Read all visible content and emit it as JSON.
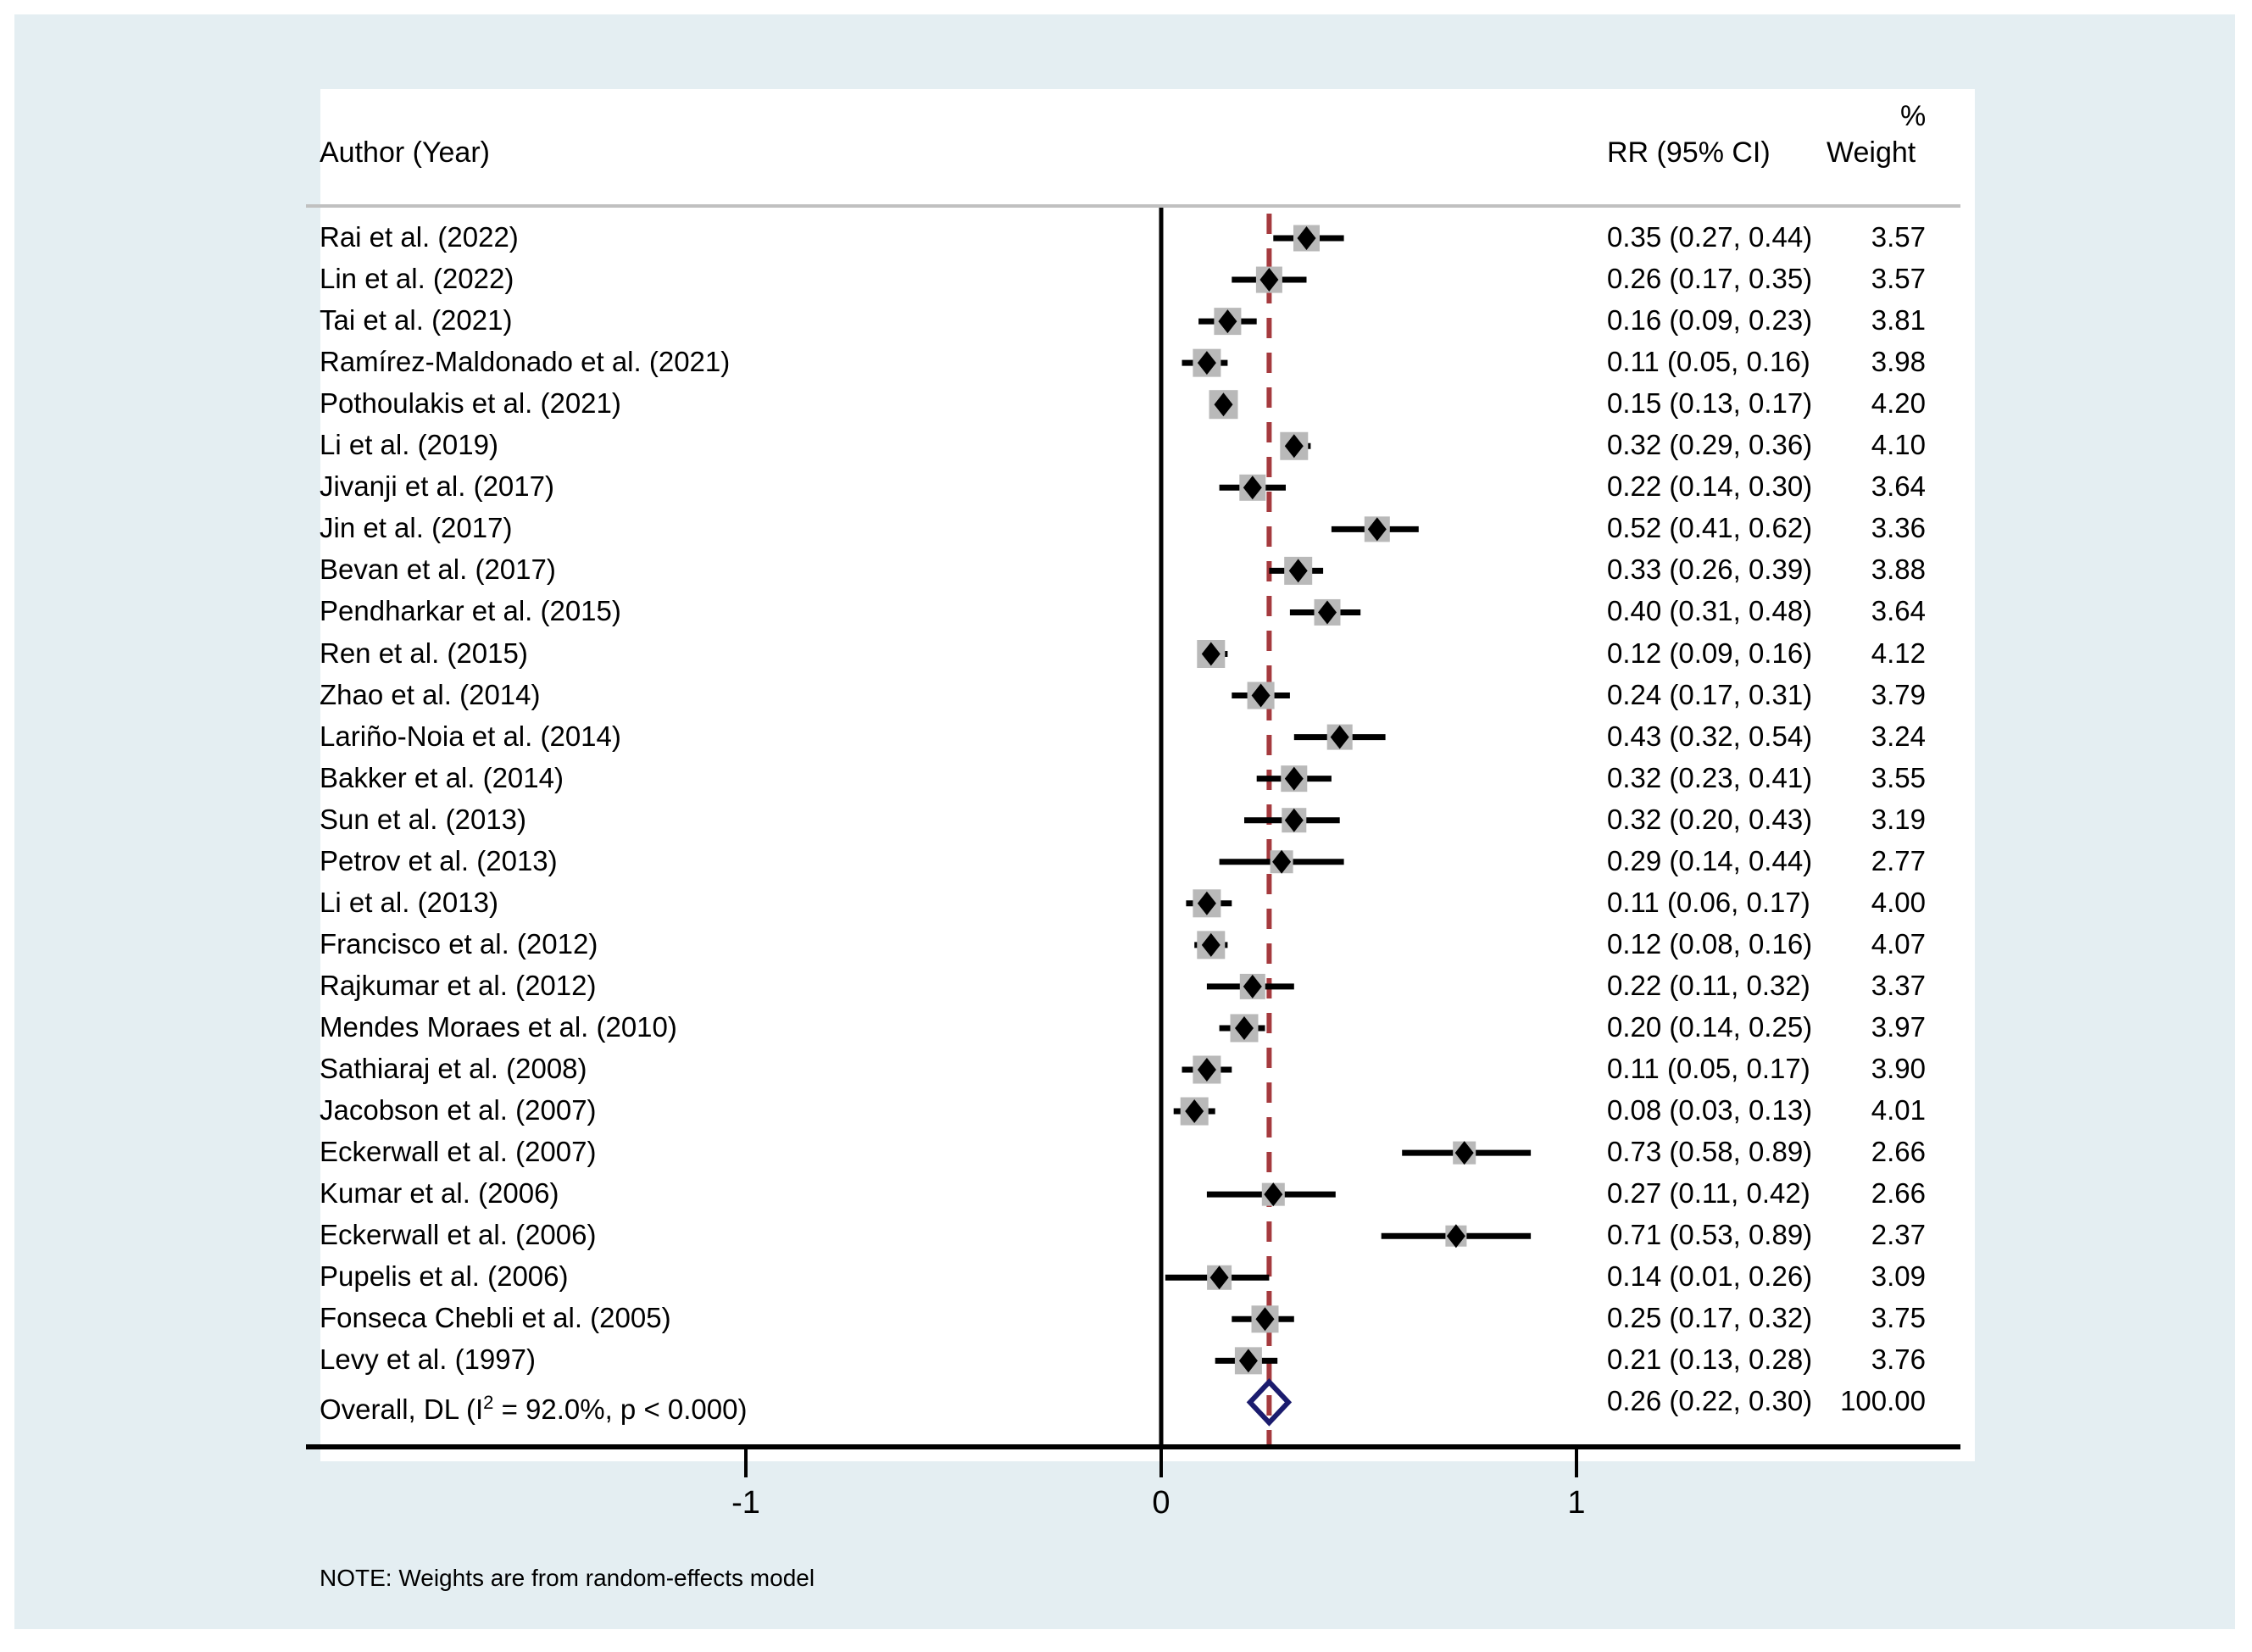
{
  "header": {
    "author_col": "Author (Year)",
    "rr_col": "RR (95% CI)",
    "pct": "%",
    "weight_col": "Weight"
  },
  "note": "NOTE: Weights are from random-effects model",
  "colors": {
    "page_background": "#ffffff",
    "canvas_background": "#e4eef2",
    "panel_background": "#ffffff",
    "separator_gray": "#c0c0c0",
    "weight_square_gray": "#b9b9b9",
    "ci_line_black": "#000000",
    "zero_line_black": "#000000",
    "pooled_dashed_red": "#a53a3e",
    "overall_diamond_navy": "#1b1c6e"
  },
  "chart_data": {
    "type": "forest",
    "effect_measure": "RR",
    "x_axis": {
      "ticks": [
        -1,
        0,
        1
      ],
      "range": [
        -1.35,
        1.9
      ],
      "zero_line": 0,
      "scale": "linear"
    },
    "pooled_line_at": 0.26,
    "studies": [
      {
        "label": "Rai et al. (2022)",
        "rr": 0.35,
        "lo": 0.27,
        "hi": 0.44,
        "rr_text": "0.35 (0.27, 0.44)",
        "weight": 3.57,
        "weight_text": "3.57"
      },
      {
        "label": "Lin et al. (2022)",
        "rr": 0.26,
        "lo": 0.17,
        "hi": 0.35,
        "rr_text": "0.26 (0.17, 0.35)",
        "weight": 3.57,
        "weight_text": "3.57"
      },
      {
        "label": "Tai et al. (2021)",
        "rr": 0.16,
        "lo": 0.09,
        "hi": 0.23,
        "rr_text": "0.16 (0.09, 0.23)",
        "weight": 3.81,
        "weight_text": "3.81"
      },
      {
        "label": "Ramírez-Maldonado et al. (2021)",
        "rr": 0.11,
        "lo": 0.05,
        "hi": 0.16,
        "rr_text": "0.11 (0.05, 0.16)",
        "weight": 3.98,
        "weight_text": "3.98"
      },
      {
        "label": "Pothoulakis et al. (2021)",
        "rr": 0.15,
        "lo": 0.13,
        "hi": 0.17,
        "rr_text": "0.15 (0.13, 0.17)",
        "weight": 4.2,
        "weight_text": "4.20"
      },
      {
        "label": "Li et al. (2019)",
        "rr": 0.32,
        "lo": 0.29,
        "hi": 0.36,
        "rr_text": "0.32 (0.29, 0.36)",
        "weight": 4.1,
        "weight_text": "4.10"
      },
      {
        "label": "Jivanji et al. (2017)",
        "rr": 0.22,
        "lo": 0.14,
        "hi": 0.3,
        "rr_text": "0.22 (0.14, 0.30)",
        "weight": 3.64,
        "weight_text": "3.64"
      },
      {
        "label": "Jin et al. (2017)",
        "rr": 0.52,
        "lo": 0.41,
        "hi": 0.62,
        "rr_text": "0.52 (0.41, 0.62)",
        "weight": 3.36,
        "weight_text": "3.36"
      },
      {
        "label": "Bevan et al. (2017)",
        "rr": 0.33,
        "lo": 0.26,
        "hi": 0.39,
        "rr_text": "0.33 (0.26, 0.39)",
        "weight": 3.88,
        "weight_text": "3.88"
      },
      {
        "label": "Pendharkar et al. (2015)",
        "rr": 0.4,
        "lo": 0.31,
        "hi": 0.48,
        "rr_text": "0.40 (0.31, 0.48)",
        "weight": 3.64,
        "weight_text": "3.64"
      },
      {
        "label": "Ren et al. (2015)",
        "rr": 0.12,
        "lo": 0.09,
        "hi": 0.16,
        "rr_text": "0.12 (0.09, 0.16)",
        "weight": 4.12,
        "weight_text": "4.12"
      },
      {
        "label": "Zhao et al. (2014)",
        "rr": 0.24,
        "lo": 0.17,
        "hi": 0.31,
        "rr_text": "0.24 (0.17, 0.31)",
        "weight": 3.79,
        "weight_text": "3.79"
      },
      {
        "label": "Lariño-Noia et al. (2014)",
        "rr": 0.43,
        "lo": 0.32,
        "hi": 0.54,
        "rr_text": "0.43 (0.32, 0.54)",
        "weight": 3.24,
        "weight_text": "3.24"
      },
      {
        "label": "Bakker et al. (2014)",
        "rr": 0.32,
        "lo": 0.23,
        "hi": 0.41,
        "rr_text": "0.32 (0.23, 0.41)",
        "weight": 3.55,
        "weight_text": "3.55"
      },
      {
        "label": "Sun et al. (2013)",
        "rr": 0.32,
        "lo": 0.2,
        "hi": 0.43,
        "rr_text": "0.32 (0.20, 0.43)",
        "weight": 3.19,
        "weight_text": "3.19"
      },
      {
        "label": "Petrov et al. (2013)",
        "rr": 0.29,
        "lo": 0.14,
        "hi": 0.44,
        "rr_text": "0.29 (0.14, 0.44)",
        "weight": 2.77,
        "weight_text": "2.77"
      },
      {
        "label": "Li et al. (2013)",
        "rr": 0.11,
        "lo": 0.06,
        "hi": 0.17,
        "rr_text": "0.11 (0.06, 0.17)",
        "weight": 4.0,
        "weight_text": "4.00"
      },
      {
        "label": "Francisco et al. (2012)",
        "rr": 0.12,
        "lo": 0.08,
        "hi": 0.16,
        "rr_text": "0.12 (0.08, 0.16)",
        "weight": 4.07,
        "weight_text": "4.07"
      },
      {
        "label": "Rajkumar et al. (2012)",
        "rr": 0.22,
        "lo": 0.11,
        "hi": 0.32,
        "rr_text": "0.22 (0.11, 0.32)",
        "weight": 3.37,
        "weight_text": "3.37"
      },
      {
        "label": "Mendes Moraes et al. (2010)",
        "rr": 0.2,
        "lo": 0.14,
        "hi": 0.25,
        "rr_text": "0.20 (0.14, 0.25)",
        "weight": 3.97,
        "weight_text": "3.97"
      },
      {
        "label": "Sathiaraj et al. (2008)",
        "rr": 0.11,
        "lo": 0.05,
        "hi": 0.17,
        "rr_text": "0.11 (0.05, 0.17)",
        "weight": 3.9,
        "weight_text": "3.90"
      },
      {
        "label": "Jacobson et al. (2007)",
        "rr": 0.08,
        "lo": 0.03,
        "hi": 0.13,
        "rr_text": "0.08 (0.03, 0.13)",
        "weight": 4.01,
        "weight_text": "4.01"
      },
      {
        "label": "Eckerwall et al. (2007)",
        "rr": 0.73,
        "lo": 0.58,
        "hi": 0.89,
        "rr_text": "0.73 (0.58, 0.89)",
        "weight": 2.66,
        "weight_text": "2.66"
      },
      {
        "label": "Kumar et al. (2006)",
        "rr": 0.27,
        "lo": 0.11,
        "hi": 0.42,
        "rr_text": "0.27 (0.11, 0.42)",
        "weight": 2.66,
        "weight_text": "2.66"
      },
      {
        "label": "Eckerwall et al. (2006)",
        "rr": 0.71,
        "lo": 0.53,
        "hi": 0.89,
        "rr_text": "0.71 (0.53, 0.89)",
        "weight": 2.37,
        "weight_text": "2.37"
      },
      {
        "label": "Pupelis et al. (2006)",
        "rr": 0.14,
        "lo": 0.01,
        "hi": 0.26,
        "rr_text": "0.14 (0.01, 0.26)",
        "weight": 3.09,
        "weight_text": "3.09"
      },
      {
        "label": "Fonseca Chebli et al. (2005)",
        "rr": 0.25,
        "lo": 0.17,
        "hi": 0.32,
        "rr_text": "0.25 (0.17, 0.32)",
        "weight": 3.75,
        "weight_text": "3.75"
      },
      {
        "label": "Levy et al. (1997)",
        "rr": 0.21,
        "lo": 0.13,
        "hi": 0.28,
        "rr_text": "0.21 (0.13, 0.28)",
        "weight": 3.76,
        "weight_text": "3.76"
      }
    ],
    "overall": {
      "label_pre": "Overall, DL (I",
      "label_sup": "2",
      "label_post": " = 92.0%, p < 0.000)",
      "rr": 0.26,
      "lo": 0.22,
      "hi": 0.3,
      "rr_text": "0.26 (0.22, 0.30)",
      "weight_text": "100.00",
      "model": "random-effects"
    }
  }
}
